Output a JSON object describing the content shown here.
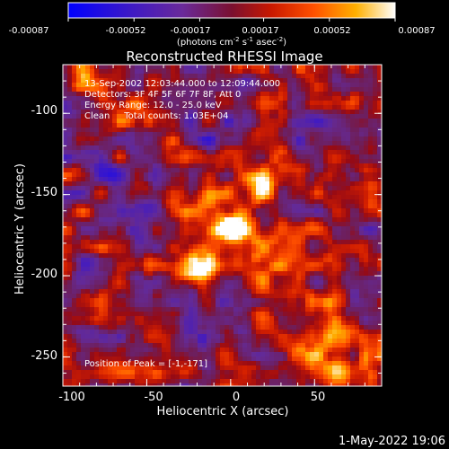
{
  "colorbar": {
    "tick_labels": [
      "-0.00087",
      "-0.00052",
      "-0.00017",
      "0.00017",
      "0.00052",
      "0.00087"
    ],
    "min": -0.00087,
    "max": 0.00087,
    "units_prefix": "(photons cm",
    "units_exp1": "-2",
    "units_mid": " s",
    "units_exp2": "-1",
    "units_mid2": " asec",
    "units_exp3": "-2",
    "units_suffix": ")"
  },
  "title": "Reconstructed RHESSI Image",
  "info": {
    "time_range": "13-Sep-2002 12:03:44.000 to 12:09:44.000",
    "detectors": "Detectors: 3F 4F 5F 6F 7F 8F, Att 0",
    "energy_range": "Energy Range: 12.0 - 25.0 keV",
    "clean": "Clean     Total counts: 1.03E+04",
    "peak": "Position of Peak = [-1,-171]"
  },
  "axes": {
    "xlabel": "Heliocentric X (arcsec)",
    "ylabel": "Heliocentric Y (arcsec)",
    "x_range": [
      -100,
      90
    ],
    "y_range": [
      -268,
      -70
    ],
    "x_ticks": [
      -100,
      -50,
      0,
      50
    ],
    "y_ticks": [
      -100,
      -150,
      -200,
      -250
    ],
    "x_tick_labels": [
      "-100",
      "-50",
      "0",
      "50"
    ],
    "y_tick_labels": [
      "-100",
      "-150",
      "-200",
      "-250"
    ]
  },
  "footer_timestamp": "1-May-2022 19:06",
  "colors": {
    "background": "#000000",
    "text": "#ffffff",
    "negative_end": "#0000ff",
    "mid_negative": "#5a2a8a",
    "positive_mid": "#e02000",
    "positive_end": "#ffffff"
  },
  "image_features": {
    "peak_position_arcsec": [
      -1,
      -171
    ],
    "sources": [
      {
        "x": -1,
        "y": -171,
        "level": 1.0
      },
      {
        "x": -22,
        "y": -197,
        "level": 0.9
      },
      {
        "x": 18,
        "y": -145,
        "level": 0.75
      }
    ]
  }
}
